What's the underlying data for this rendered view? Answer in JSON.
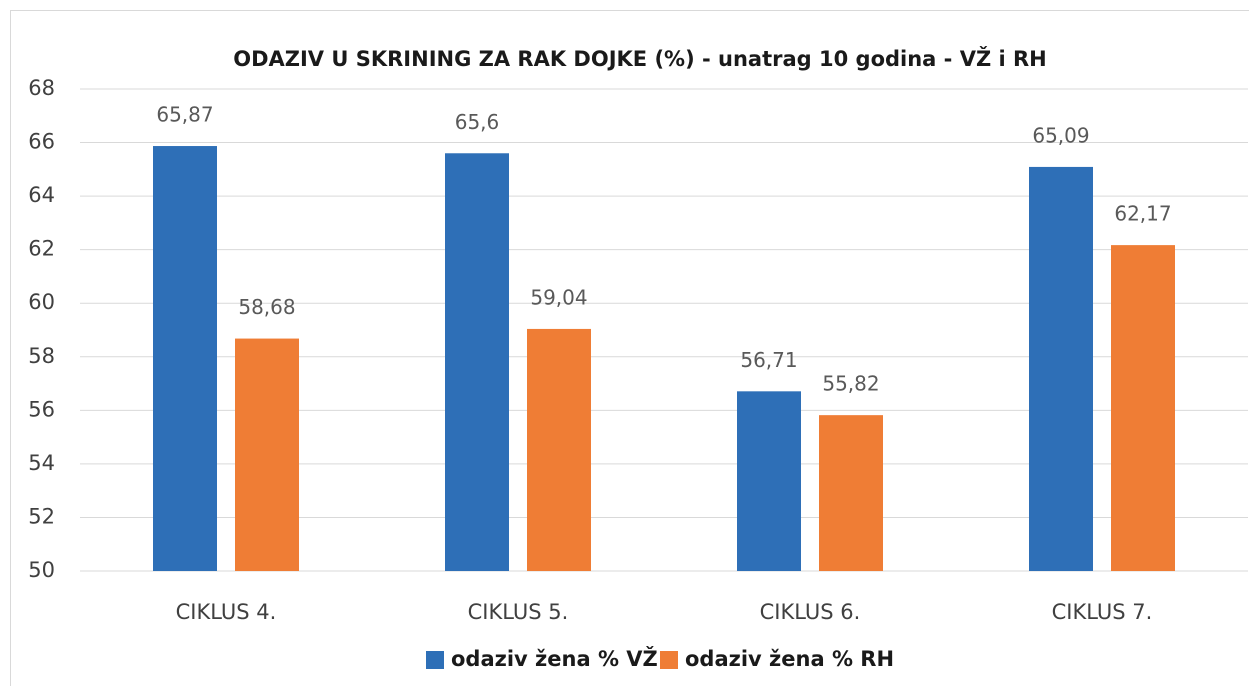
{
  "chart_data": {
    "type": "bar",
    "title": "ODAZIV U SKRINING ZA RAK DOJKE (%) - unatrag 10 godina - VŽ i RH",
    "categories": [
      "CIKLUS 4.",
      "CIKLUS 5.",
      "CIKLUS 6.",
      "CIKLUS 7."
    ],
    "series": [
      {
        "name": "odaziv žena % VŽ",
        "color": "#2e6fb7",
        "values": [
          65.87,
          65.6,
          56.71,
          65.09
        ],
        "value_labels": [
          "65,87",
          "65,6",
          "56,71",
          "65,09"
        ]
      },
      {
        "name": "odaziv žena % RH",
        "color": "#ef7d35",
        "values": [
          58.68,
          59.04,
          55.82,
          62.17
        ],
        "value_labels": [
          "58,68",
          "59,04",
          "55,82",
          "62,17"
        ]
      }
    ],
    "ylim": [
      50,
      68
    ],
    "yticks": [
      50,
      52,
      54,
      56,
      58,
      60,
      62,
      64,
      66,
      68
    ],
    "grid": true,
    "legend": "bottom"
  }
}
